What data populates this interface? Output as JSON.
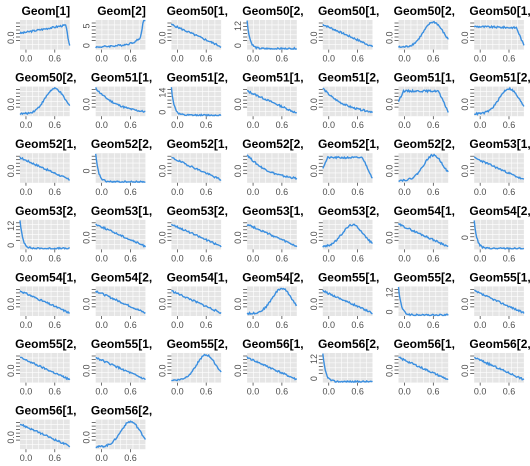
{
  "chart_data": {
    "type": "line",
    "layout": {
      "columns": 7,
      "rows": 7
    },
    "line_color": "#3b8fe0",
    "panel_background": "#e5e5e5",
    "grid": true,
    "x_ticks": [
      "0.0",
      "0.6"
    ],
    "panels": [
      {
        "title": "Geom[1]",
        "y_ticks": [
          "0.0"
        ],
        "shape": "rise_sharp_drop"
      },
      {
        "title": "Geom[2]",
        "y_ticks": [
          "0",
          "5"
        ],
        "shape": "late_spike"
      },
      {
        "title": "Geom50[1,",
        "y_ticks": [
          "0.0"
        ],
        "shape": "decline"
      },
      {
        "title": "Geom50[2,",
        "y_ticks": [
          "0",
          "12"
        ],
        "shape": "spike_start"
      },
      {
        "title": "Geom50[1,",
        "y_ticks": [
          "0.0"
        ],
        "shape": "decline"
      },
      {
        "title": "Geom50[2,",
        "y_ticks": [
          "0.0"
        ],
        "shape": "hump_late"
      },
      {
        "title": "Geom50[1,",
        "y_ticks": [
          "0.0"
        ],
        "shape": "flat_drop"
      },
      {
        "title": "Geom50[2,",
        "y_ticks": [
          "0.0"
        ],
        "shape": "hump_late"
      },
      {
        "title": "Geom51[1,",
        "y_ticks": [
          "0.0"
        ],
        "shape": "decline_steep"
      },
      {
        "title": "Geom51[2,",
        "y_ticks": [
          "0",
          "14"
        ],
        "shape": "spike_start"
      },
      {
        "title": "Geom51[1,",
        "y_ticks": [
          "0.0"
        ],
        "shape": "decline"
      },
      {
        "title": "Geom51[2,",
        "y_ticks": [
          "0.0"
        ],
        "shape": "decline_steep"
      },
      {
        "title": "Geom51[1,",
        "y_ticks": [
          "0.0"
        ],
        "shape": "plateau"
      },
      {
        "title": "Geom51[2,",
        "y_ticks": [
          "0.0"
        ],
        "shape": "hump_late"
      },
      {
        "title": "Geom52[1,",
        "y_ticks": [
          "0.0"
        ],
        "shape": "decline"
      },
      {
        "title": "Geom52[2,",
        "y_ticks": [
          "0"
        ],
        "shape": "spike_start"
      },
      {
        "title": "Geom52[1,",
        "y_ticks": [
          "0.0"
        ],
        "shape": "decline"
      },
      {
        "title": "Geom52[2,",
        "y_ticks": [
          "0.0"
        ],
        "shape": "decline_steep"
      },
      {
        "title": "Geom52[1,",
        "y_ticks": [
          "0.0"
        ],
        "shape": "plateau"
      },
      {
        "title": "Geom52[2,",
        "y_ticks": [
          "0.0"
        ],
        "shape": "hump_late"
      },
      {
        "title": "Geom53[1,",
        "y_ticks": [
          "0.0"
        ],
        "shape": "decline"
      },
      {
        "title": "Geom53[2,",
        "y_ticks": [
          "0",
          "12"
        ],
        "shape": "spike_start"
      },
      {
        "title": "Geom53[1,",
        "y_ticks": [
          "0.0"
        ],
        "shape": "decline"
      },
      {
        "title": "Geom53[2,",
        "y_ticks": [
          "0.0"
        ],
        "shape": "decline"
      },
      {
        "title": "Geom53[1,",
        "y_ticks": [
          "0.0"
        ],
        "shape": "decline"
      },
      {
        "title": "Geom53[2,",
        "y_ticks": [
          "0.0"
        ],
        "shape": "hump_mid"
      },
      {
        "title": "Geom54[1,",
        "y_ticks": [
          "0.0"
        ],
        "shape": "decline"
      },
      {
        "title": "Geom54[2,",
        "y_ticks": [
          "0"
        ],
        "shape": "spike_start"
      },
      {
        "title": "Geom54[1,",
        "y_ticks": [
          "0.0"
        ],
        "shape": "decline"
      },
      {
        "title": "Geom54[2,",
        "y_ticks": [
          "0.0"
        ],
        "shape": "decline"
      },
      {
        "title": "Geom54[1,",
        "y_ticks": [
          "0.0"
        ],
        "shape": "decline"
      },
      {
        "title": "Geom54[2,",
        "y_ticks": [
          "0.0"
        ],
        "shape": "hump_late"
      },
      {
        "title": "Geom55[1,",
        "y_ticks": [
          "0.0"
        ],
        "shape": "decline"
      },
      {
        "title": "Geom55[2,",
        "y_ticks": [
          "0",
          "12"
        ],
        "shape": "spike_start"
      },
      {
        "title": "Geom55[1,",
        "y_ticks": [
          "0.0"
        ],
        "shape": "decline"
      },
      {
        "title": "Geom55[2,",
        "y_ticks": [
          "0.0"
        ],
        "shape": "decline"
      },
      {
        "title": "Geom55[1,",
        "y_ticks": [
          "0.0"
        ],
        "shape": "decline"
      },
      {
        "title": "Geom55[2,",
        "y_ticks": [
          "0.0"
        ],
        "shape": "hump_late"
      },
      {
        "title": "Geom56[1,",
        "y_ticks": [
          "0.0"
        ],
        "shape": "decline"
      },
      {
        "title": "Geom56[2,",
        "y_ticks": [
          "0",
          "12"
        ],
        "shape": "spike_start"
      },
      {
        "title": "Geom56[1,",
        "y_ticks": [
          "0.0"
        ],
        "shape": "decline"
      },
      {
        "title": "Geom56[2,",
        "y_ticks": [
          "0.0"
        ],
        "shape": "decline"
      },
      {
        "title": "Geom56[1,",
        "y_ticks": [
          "0.0"
        ],
        "shape": "decline"
      },
      {
        "title": "Geom56[2,",
        "y_ticks": [
          "0.0"
        ],
        "shape": "hump_late"
      }
    ]
  }
}
